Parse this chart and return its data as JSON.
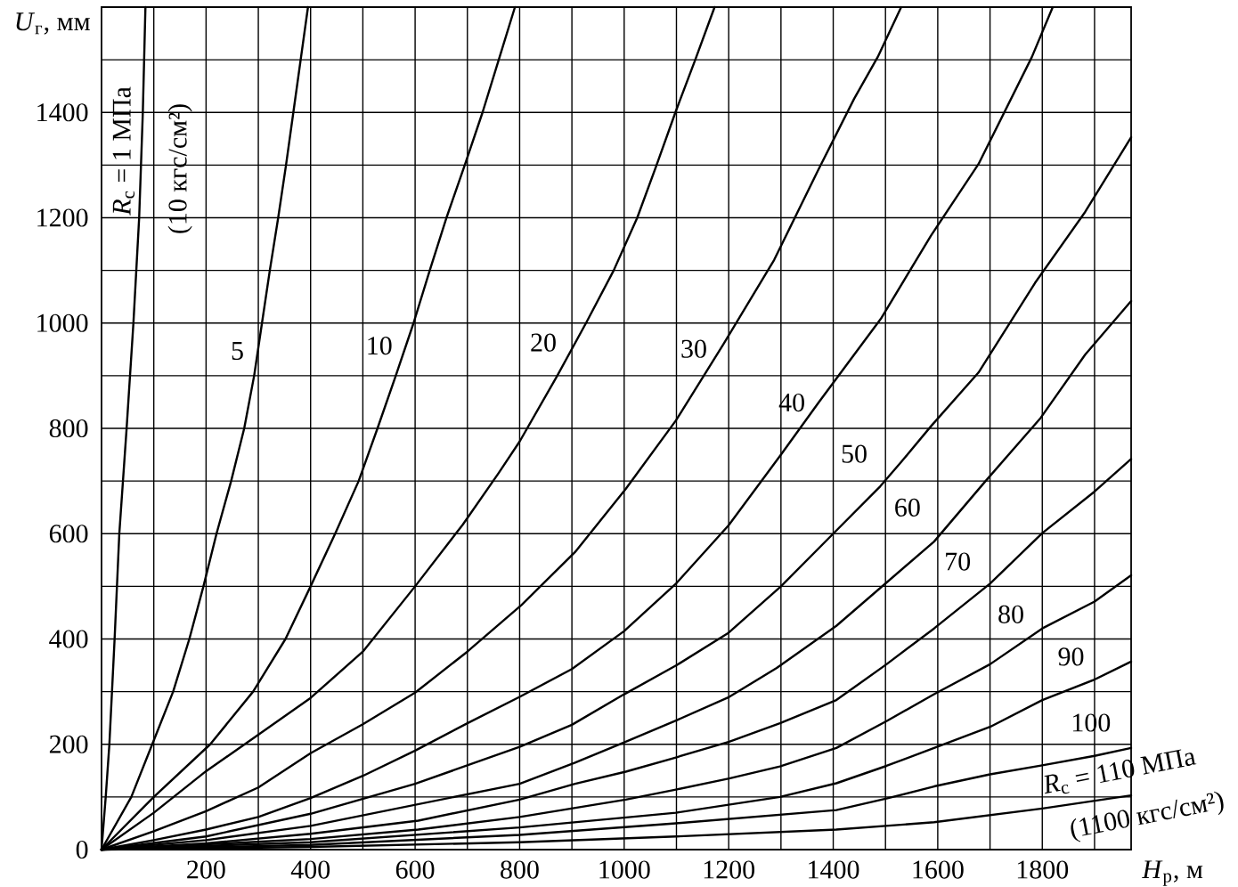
{
  "chart_data": {
    "type": "line",
    "xlabel": "*H*$_{р}$, м",
    "ylabel": "*U*$_{г}$, мм",
    "xlim": [
      0,
      1970
    ],
    "ylim": [
      0,
      1600
    ],
    "xticks": [
      {
        "value": 100,
        "label": null
      },
      200,
      {
        "value": 300,
        "label": null
      },
      400,
      {
        "value": 500,
        "label": null
      },
      600,
      {
        "value": 700,
        "label": null
      },
      800,
      {
        "value": 900,
        "label": null
      },
      1000,
      {
        "value": 1100,
        "label": null
      },
      1200,
      {
        "value": 1300,
        "label": null
      },
      1400,
      {
        "value": 1500,
        "label": null
      },
      1600,
      {
        "value": 1700,
        "label": null
      },
      1800,
      {
        "value": 1900,
        "label": null
      }
    ],
    "yticks": [
      0,
      {
        "value": 100,
        "label": null
      },
      200,
      {
        "value": 300,
        "label": null
      },
      400,
      {
        "value": 500,
        "label": null
      },
      600,
      {
        "value": 700,
        "label": null
      },
      800,
      {
        "value": 900,
        "label": null
      },
      1000,
      {
        "value": 1100,
        "label": null
      },
      1200,
      {
        "value": 1300,
        "label": null
      },
      1400,
      {
        "value": 1500,
        "label": null
      }
    ],
    "grid": true,
    "series": [
      {
        "name": "*R*$_{с}$ = 1 МПа",
        "color": "#000000",
        "x": [
          0,
          8,
          15,
          25,
          34,
          48,
          61,
          72,
          79,
          84
        ],
        "values": [
          0,
          100,
          200,
          400,
          600,
          800,
          1000,
          1200,
          1400,
          1600
        ]
      },
      {
        "name": "5",
        "color": "#000000",
        "x": [
          0,
          57,
          97,
          137,
          168,
          195,
          220,
          248,
          273,
          292,
          307,
          322,
          338,
          353,
          367,
          381,
          395
        ],
        "values": [
          0,
          100,
          200,
          300,
          400,
          500,
          600,
          700,
          800,
          900,
          1000,
          1100,
          1200,
          1300,
          1400,
          1500,
          1600
        ]
      },
      {
        "name": "10",
        "color": "#000000",
        "x": [
          0,
          100,
          208,
          290,
          352,
          400,
          447,
          492,
          528,
          563,
          597,
          628,
          660,
          695,
          729,
          760,
          791
        ],
        "values": [
          0,
          100,
          200,
          300,
          400,
          500,
          600,
          700,
          800,
          900,
          1000,
          1100,
          1200,
          1300,
          1400,
          1500,
          1600
        ]
      },
      {
        "name": "20",
        "color": "#000000",
        "x": [
          0,
          100,
          200,
          300,
          400,
          500,
          600,
          691,
          759,
          800,
          872,
          927,
          980,
          1025,
          1062,
          1098,
          1136,
          1173
        ],
        "values": [
          0,
          70,
          149,
          218,
          288,
          376,
          500,
          617,
          714,
          775,
          900,
          1000,
          1100,
          1200,
          1300,
          1400,
          1500,
          1600
        ]
      },
      {
        "name": "30",
        "color": "#000000",
        "x": [
          0,
          100,
          200,
          300,
          400,
          500,
          600,
          700,
          804,
          906,
          1003,
          1099,
          1190,
          1287,
          1371,
          1440,
          1485,
          1530
        ],
        "values": [
          0,
          35,
          73,
          118,
          183,
          238,
          298,
          376,
          465,
          565,
          685,
          815,
          960,
          1120,
          1290,
          1426,
          1505,
          1600
        ]
      },
      {
        "name": "40",
        "color": "#000000",
        "x": [
          0,
          100,
          200,
          300,
          400,
          500,
          600,
          700,
          800,
          900,
          1000,
          1100,
          1200,
          1300,
          1372,
          1491,
          1587,
          1678,
          1780,
          1820
        ],
        "values": [
          0,
          18,
          38,
          62,
          98,
          140,
          188,
          240,
          290,
          343,
          415,
          506,
          616,
          750,
          849,
          1008,
          1166,
          1302,
          1505,
          1600
        ]
      },
      {
        "name": "50",
        "color": "#000000",
        "x": [
          0,
          200,
          400,
          600,
          800,
          900,
          1000,
          1100,
          1200,
          1300,
          1400,
          1490,
          1530,
          1587,
          1678,
          1786,
          1882,
          1970
        ],
        "values": [
          0,
          25,
          68,
          125,
          195,
          237,
          295,
          350,
          412,
          500,
          600,
          690,
          736,
          804,
          906,
          1076,
          1211,
          1353
        ]
      },
      {
        "name": "60",
        "color": "#000000",
        "x": [
          0,
          200,
          400,
          600,
          800,
          906,
          1003,
          1099,
          1201,
          1292,
          1406,
          1593,
          1689,
          1797,
          1882,
          1970
        ],
        "values": [
          0,
          18,
          45,
          85,
          125,
          165,
          205,
          245,
          290,
          345,
          425,
          585,
          697,
          820,
          940,
          1042
        ]
      },
      {
        "name": "70",
        "color": "#000000",
        "x": [
          0,
          200,
          400,
          606,
          800,
          906,
          1003,
          1099,
          1201,
          1298,
          1406,
          1502,
          1593,
          1700,
          1800,
          1900,
          1970
        ],
        "values": [
          0,
          12,
          30,
          55,
          95,
          125,
          148,
          175,
          205,
          240,
          284,
          352,
          420,
          505,
          601,
          680,
          742
        ]
      },
      {
        "name": "80",
        "color": "#000000",
        "x": [
          0,
          400,
          606,
          800,
          1003,
          1099,
          1201,
          1298,
          1406,
          1502,
          1593,
          1700,
          1800,
          1900,
          1970
        ],
        "values": [
          0,
          20,
          38,
          62,
          95,
          114,
          135,
          158,
          193,
          244,
          295,
          352,
          420,
          471,
          521
        ]
      },
      {
        "name": "90",
        "color": "#000000",
        "x": [
          0,
          400,
          800,
          1099,
          1298,
          1406,
          1502,
          1593,
          1700,
          1800,
          1900,
          1970
        ],
        "values": [
          0,
          14,
          42,
          70,
          100,
          126,
          159,
          193,
          233,
          284,
          323,
          357
        ]
      },
      {
        "name": "100",
        "color": "#000000",
        "x": [
          0,
          400,
          800,
          1099,
          1406,
          1502,
          1593,
          1700,
          1800,
          1900,
          1970
        ],
        "values": [
          0,
          9,
          28,
          50,
          75,
          97,
          120,
          143,
          160,
          178,
          193
        ]
      },
      {
        "name": "*R*$_{с}$ = 110 МПа",
        "color": "#000000",
        "x": [
          0,
          400,
          800,
          1099,
          1406,
          1593,
          1800,
          1970
        ],
        "values": [
          0,
          5,
          14,
          25,
          38,
          52,
          78,
          103
        ]
      }
    ],
    "annotations": [
      "(10 кгс/см²)",
      "(1100 кгс/см²)"
    ]
  }
}
